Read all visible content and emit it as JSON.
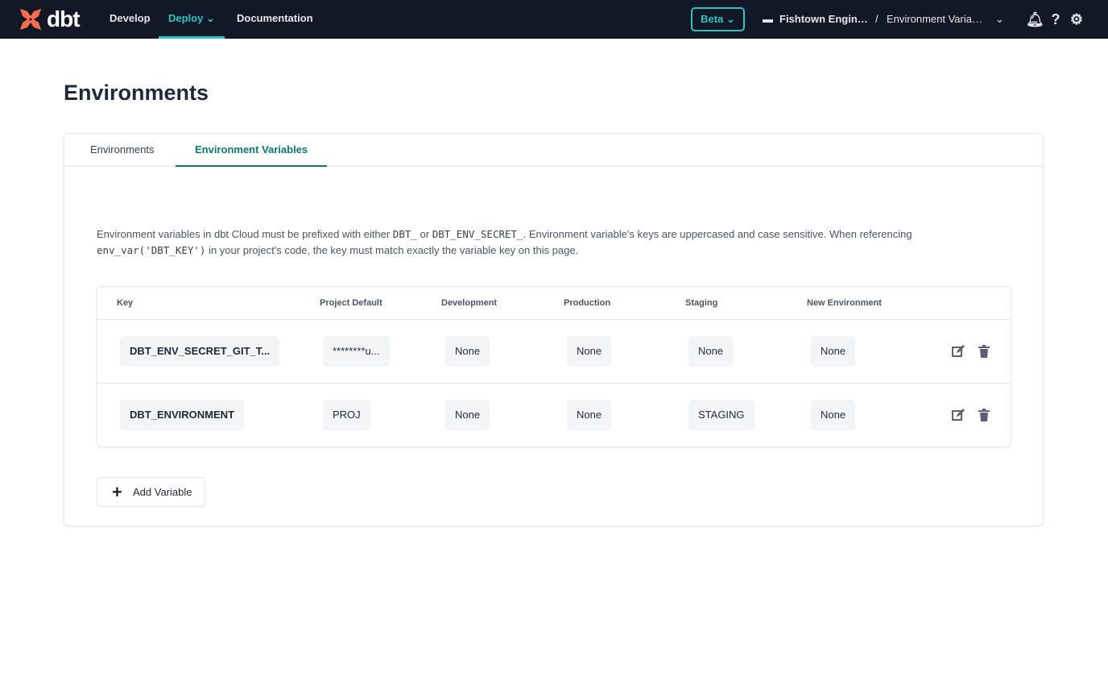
{
  "nav": {
    "logo": "dbt",
    "links": [
      "Develop",
      "Deploy",
      "Documentation"
    ],
    "active": "Deploy",
    "beta": "Beta",
    "account": "Fishtown Engin…",
    "separator": "/",
    "project": "Environment Varia…",
    "accent": "#2ec4c7"
  },
  "page": {
    "title": "Environments"
  },
  "tabs": [
    "Environments",
    "Environment Variables"
  ],
  "description": {
    "p1": "Environment variables in dbt Cloud must be prefixed with either ",
    "c1": "DBT_",
    "p2": " or ",
    "c2": "DBT_ENV_SECRET_",
    "p3": ". Environment variable's keys are uppercased and case sensitive. When referencing ",
    "c3": "env_var('DBT_KEY')",
    "p4": " in your project's code, the key must match exactly the variable key on this page."
  },
  "table": {
    "columns": [
      "Key",
      "Project Default",
      "Development",
      "Production",
      "Staging",
      "New Environment"
    ],
    "rows": [
      [
        "DBT_ENV_SECRET_GIT_T...",
        "********u...",
        "None",
        "None",
        "None",
        "None"
      ],
      [
        "DBT_ENVIRONMENT",
        "PROJ",
        "None",
        "None",
        "STAGING",
        "None"
      ]
    ]
  },
  "add_button": "Add Variable"
}
